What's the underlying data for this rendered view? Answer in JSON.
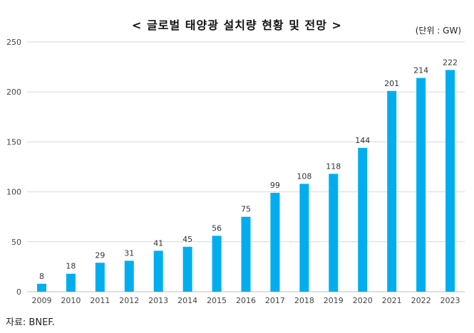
{
  "title": "< 글로벌 태양광 설치량 현황 및 전망 >",
  "unit_label": "(단위 : GW)",
  "source": "자료: BNEF.",
  "chart_data": {
    "type": "bar",
    "title": "< 글로벌 태양광 설치량 현황 및 전망 >",
    "xlabel": "",
    "ylabel": "",
    "categories": [
      "2009",
      "2010",
      "2011",
      "2012",
      "2013",
      "2014",
      "2015",
      "2016",
      "2017",
      "2018",
      "2019",
      "2020",
      "2021",
      "2022",
      "2023"
    ],
    "values": [
      8,
      18,
      29,
      31,
      41,
      45,
      56,
      75,
      99,
      108,
      118,
      144,
      201,
      214,
      222
    ],
    "data_labels": [
      "8",
      "18",
      "29",
      "31",
      "41",
      "45",
      "56",
      "75",
      "99",
      "108",
      "118",
      "144",
      "201",
      "214",
      "222"
    ],
    "y_ticks": [
      "0",
      "50",
      "100",
      "150",
      "200",
      "250"
    ],
    "y_tick_values": [
      0,
      50,
      100,
      150,
      200,
      250
    ],
    "ylim": [
      0,
      250
    ],
    "grid": true,
    "legend": "none",
    "bar_color": "#00AEEF",
    "grid_color": "#D9D9D9"
  }
}
